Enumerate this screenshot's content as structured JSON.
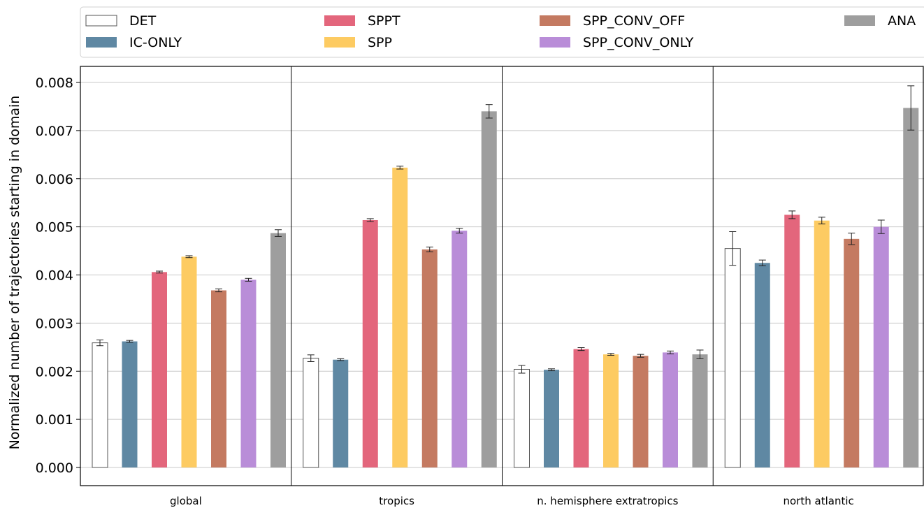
{
  "chart_data": {
    "type": "bar",
    "categories": [
      "global",
      "tropics",
      "n. hemisphere extratropics",
      "north atlantic"
    ],
    "ylabel": "Normalized number of trajectories starting in domain",
    "xlabel": "",
    "ylim": [
      0,
      0.0084
    ],
    "yticks": [
      "0.000",
      "0.001",
      "0.002",
      "0.003",
      "0.004",
      "0.005",
      "0.006",
      "0.007",
      "0.008"
    ],
    "grid": "horizontal",
    "legend_position": "top",
    "series": [
      {
        "name": "DET",
        "color": "#ffffff",
        "edge": "#555555",
        "values": [
          0.00259,
          0.00227,
          0.00204,
          0.00455
        ],
        "err": [
          6e-05,
          7e-05,
          8e-05,
          0.00035
        ]
      },
      {
        "name": "IC-ONLY",
        "color": "#5f88a3",
        "values": [
          0.00262,
          0.00224,
          0.00203,
          0.00425
        ],
        "err": [
          2e-05,
          2e-05,
          2e-05,
          6e-05
        ]
      },
      {
        "name": "SPPT",
        "color": "#e3667c",
        "values": [
          0.00406,
          0.00514,
          0.00246,
          0.00525
        ],
        "err": [
          2e-05,
          3e-05,
          3e-05,
          8e-05
        ]
      },
      {
        "name": "SPP",
        "color": "#fdcb62",
        "values": [
          0.00438,
          0.00623,
          0.00235,
          0.00513
        ],
        "err": [
          2e-05,
          3e-05,
          2e-05,
          7e-05
        ]
      },
      {
        "name": "SPP_CONV_OFF",
        "color": "#c47a61",
        "values": [
          0.00368,
          0.00453,
          0.00232,
          0.00475
        ],
        "err": [
          3e-05,
          5e-05,
          3e-05,
          0.00012
        ]
      },
      {
        "name": "SPP_CONV_ONLY",
        "color": "#b98dd8",
        "values": [
          0.0039,
          0.00492,
          0.00239,
          0.005
        ],
        "err": [
          3e-05,
          5e-05,
          3e-05,
          0.00014
        ]
      },
      {
        "name": "ANA",
        "color": "#9e9e9e",
        "values": [
          0.00487,
          0.0074,
          0.00235,
          0.00747
        ],
        "err": [
          7e-05,
          0.00014,
          9e-05,
          0.00046
        ]
      }
    ]
  }
}
